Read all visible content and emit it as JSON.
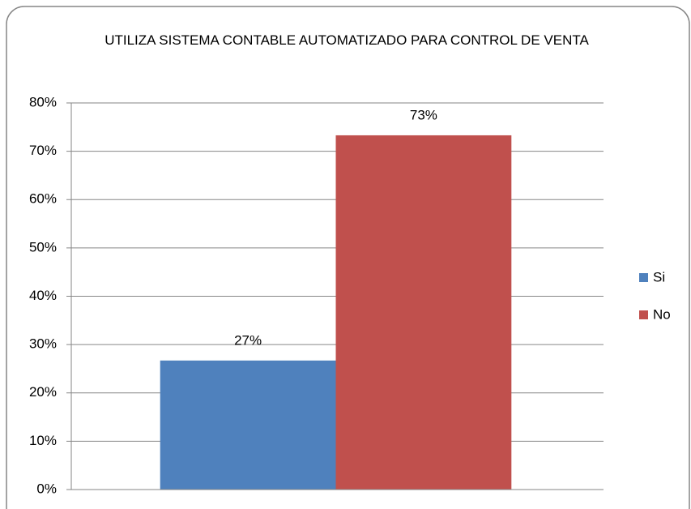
{
  "chart_data": {
    "type": "bar",
    "title": "UTILIZA SISTEMA CONTABLE AUTOMATIZADO PARA CONTROL DE VENTA",
    "categories": [
      null
    ],
    "series": [
      {
        "name": "Si",
        "color": "#4f81bd",
        "values": [
          26.7
        ],
        "value_labels": [
          "27%"
        ]
      },
      {
        "name": "No",
        "color": "#c0504d",
        "values": [
          73.3
        ],
        "value_labels": [
          "73%"
        ]
      }
    ],
    "ylim": [
      0,
      80
    ],
    "yticks": [
      {
        "value": 0,
        "label": "0%"
      },
      {
        "value": 10,
        "label": "10%"
      },
      {
        "value": 20,
        "label": "20%"
      },
      {
        "value": 30,
        "label": "30%"
      },
      {
        "value": 40,
        "label": "40%"
      },
      {
        "value": 50,
        "label": "50%"
      },
      {
        "value": 60,
        "label": "60%"
      },
      {
        "value": 70,
        "label": "70%"
      },
      {
        "value": 80,
        "label": "80%"
      }
    ],
    "grid": true,
    "legend": "right"
  }
}
